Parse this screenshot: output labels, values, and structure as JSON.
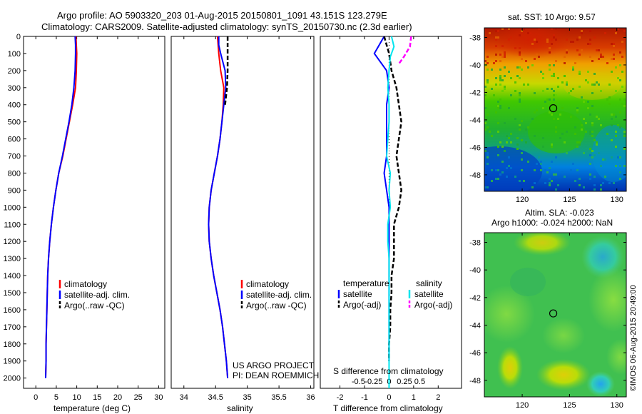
{
  "header": {
    "line1": "Argo profile: AO 5903320_203 01-Aug-2015 20150801_1091 43.151S 123.279E",
    "line2": "Climatology: CARS2009. Satellite-adjusted climatology: synTS_20150730.nc (2.3d earlier)"
  },
  "colors": {
    "climatology": "#ff0000",
    "satellite": "#0000ff",
    "argo": "#000000",
    "sal_satellite": "#00e5ee",
    "sal_argo": "#ff00ff"
  },
  "depth_axis": {
    "ticks": [
      "0",
      "100",
      "200",
      "300",
      "400",
      "500",
      "600",
      "700",
      "800",
      "900",
      "1000",
      "1100",
      "1200",
      "1300",
      "1400",
      "1500",
      "1600",
      "1700",
      "1800",
      "1900",
      "2000"
    ],
    "ylim": [
      0,
      2060
    ]
  },
  "panels": {
    "temperature": {
      "xlabel": "temperature (deg C)",
      "ticks": [
        "0",
        "5",
        "10",
        "15",
        "20",
        "25",
        "30"
      ],
      "xlim": [
        -3,
        31.5
      ],
      "legend": [
        "climatology",
        "satellite-adj. clim.",
        "Argo(..raw -QC)"
      ]
    },
    "salinity": {
      "xlabel": "salinity",
      "ticks": [
        "34",
        "34.5",
        "35",
        "35.5",
        "36"
      ],
      "xlim": [
        33.8,
        36.05
      ],
      "legend": [
        "climatology",
        "satellite-adj. clim.",
        "Argo(..raw -QC)"
      ],
      "credit_line1": "US ARGO PROJECT",
      "credit_line2": "PI: DEAN ROEMMICH"
    },
    "difference": {
      "xlabel": "T difference from climatology",
      "top_label": "S difference from climatology",
      "t_ticks": [
        "-2",
        "-1",
        "0",
        "1",
        "2"
      ],
      "t_xlim": [
        -2.8,
        2.95
      ],
      "s_ticks": [
        "-0.5",
        "-0.25",
        "0",
        "0.25",
        "0.5"
      ],
      "temperature_header": "temperature",
      "salinity_header": "salinity",
      "temperature_entries": [
        "satellite",
        "Argo(-adj)"
      ],
      "salinity_entries": [
        "satellite",
        "Argo(-adj)"
      ]
    }
  },
  "maps": {
    "sst_title": "sat. SST: 10 Argo: 9.57",
    "sla_title1": "Altim. SLA: -0.023",
    "sla_title2": "Argo h1000: -0.024 h2000: NaN",
    "lat_ticks": [
      "-38",
      "-40",
      "-42",
      "-44",
      "-46",
      "-48"
    ],
    "lon_ticks": [
      "120",
      "125",
      "130"
    ],
    "lon_range": [
      116,
      131
    ],
    "lat_range": [
      -37.3,
      -49.2
    ],
    "float_position": {
      "lon": 123.279,
      "lat": -43.151
    }
  },
  "footer_stamp": "©IMOS 06-Aug-2015 20:49:00",
  "chart_data": [
    {
      "type": "line",
      "title": "",
      "xlabel": "temperature (deg C)",
      "ylabel": "",
      "xlim": [
        -3,
        31.5
      ],
      "ylim": [
        0,
        2060
      ],
      "series": [
        {
          "name": "climatology",
          "x": [
            9.8,
            9.9,
            10.0,
            9.9,
            9.7,
            9.0,
            8.2,
            7.4,
            6.6,
            5.6,
            4.9,
            4.3,
            3.8,
            3.4,
            3.1,
            2.9,
            2.8,
            2.7,
            2.6,
            2.5,
            2.5,
            2.4
          ],
          "y": [
            0,
            50,
            100,
            200,
            300,
            400,
            500,
            600,
            700,
            800,
            900,
            1000,
            1100,
            1200,
            1300,
            1400,
            1500,
            1600,
            1700,
            1800,
            1900,
            2000
          ]
        },
        {
          "name": "satellite-adj. clim.",
          "x": [
            9.6,
            9.7,
            9.7,
            9.6,
            9.3,
            8.8,
            8.1,
            7.3,
            6.5,
            5.6,
            4.9,
            4.3,
            3.8,
            3.4,
            3.1,
            2.9,
            2.8,
            2.7,
            2.6,
            2.5,
            2.5,
            2.4
          ],
          "y": [
            0,
            50,
            100,
            200,
            300,
            400,
            500,
            600,
            700,
            800,
            900,
            1000,
            1100,
            1200,
            1300,
            1400,
            1500,
            1600,
            1700,
            1800,
            1900,
            2000
          ]
        }
      ]
    },
    {
      "type": "line",
      "title": "",
      "xlabel": "salinity",
      "ylabel": "",
      "xlim": [
        33.8,
        36.05
      ],
      "ylim": [
        0,
        2060
      ],
      "series": [
        {
          "name": "climatology",
          "x": [
            34.53,
            34.54,
            34.55,
            34.58,
            34.63,
            34.62,
            34.6,
            34.57,
            34.53,
            34.48,
            34.43,
            34.4,
            34.39,
            34.4,
            34.43,
            34.47,
            34.52,
            34.57,
            34.61,
            34.64,
            34.67,
            34.69
          ],
          "y": [
            0,
            50,
            100,
            200,
            300,
            400,
            500,
            600,
            700,
            800,
            900,
            1000,
            1100,
            1200,
            1300,
            1400,
            1500,
            1600,
            1700,
            1800,
            1900,
            2000
          ]
        },
        {
          "name": "satellite-adj. clim.",
          "x": [
            34.55,
            34.55,
            34.58,
            34.65,
            34.66,
            34.63,
            34.6,
            34.57,
            34.53,
            34.48,
            34.43,
            34.4,
            34.39,
            34.4,
            34.43,
            34.47,
            34.52,
            34.57,
            34.61,
            34.64,
            34.67,
            34.69
          ],
          "y": [
            0,
            50,
            100,
            200,
            300,
            400,
            500,
            600,
            700,
            800,
            900,
            1000,
            1100,
            1200,
            1300,
            1400,
            1500,
            1600,
            1700,
            1800,
            1900,
            2000
          ]
        },
        {
          "name": "Argo(..raw -QC)",
          "x": [
            34.69,
            34.69,
            34.69,
            34.69,
            34.68,
            34.65
          ],
          "y": [
            0,
            50,
            100,
            200,
            300,
            400
          ]
        }
      ]
    },
    {
      "type": "line",
      "title": "",
      "xlabel": "T difference from climatology",
      "ylabel": "",
      "xlim": [
        -2.8,
        2.95
      ],
      "ylim": [
        0,
        2060
      ],
      "series": [
        {
          "name": "satellite",
          "x": [
            -0.2,
            -0.4,
            -0.6,
            -0.1,
            0.0,
            -0.1,
            -0.1,
            -0.1,
            -0.1,
            -0.2,
            -0.1,
            0.0,
            0.0,
            0.0,
            0.0,
            0.0,
            0.0,
            0.0,
            0.0,
            0.0,
            0.0
          ],
          "y": [
            0,
            50,
            100,
            200,
            300,
            400,
            500,
            600,
            700,
            800,
            900,
            1000,
            1100,
            1200,
            1300,
            1400,
            1500,
            1600,
            1700,
            1800,
            1900
          ]
        },
        {
          "name": "Argo(-adj)",
          "x": [
            -0.2,
            0.0,
            0.1,
            0.3,
            0.4,
            0.5,
            0.4,
            0.3,
            0.4,
            0.5,
            0.4,
            0.2,
            0.2,
            0.2,
            0.1,
            0.1,
            0.05,
            0.05,
            0.0,
            0.0
          ],
          "y": [
            0,
            100,
            200,
            300,
            400,
            500,
            600,
            700,
            800,
            900,
            1000,
            1100,
            1200,
            1300,
            1400,
            1500,
            1600,
            1700,
            1800,
            1900
          ]
        }
      ]
    }
  ]
}
